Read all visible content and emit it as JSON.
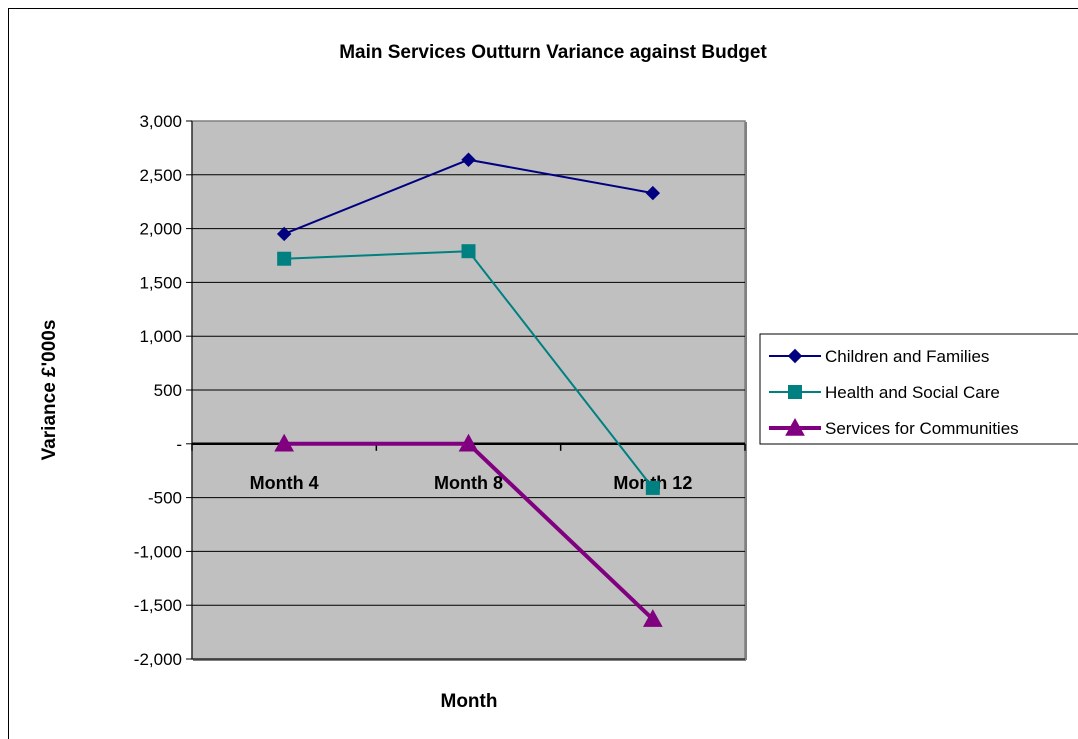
{
  "chart_data": {
    "type": "line",
    "title": "Main Services Outturn Variance against Budget",
    "xlabel": "Month",
    "ylabel": "Variance £'000s",
    "categories": [
      "Month 4",
      "Month 8",
      "Month 12"
    ],
    "ylim": [
      -2000,
      3000
    ],
    "yticks": [
      3000,
      2500,
      2000,
      1500,
      1000,
      500,
      0,
      -500,
      -1000,
      -1500,
      -2000
    ],
    "ytick_labels": [
      "3,000",
      "2,500",
      "2,000",
      "1,500",
      "1,000",
      "500",
      "-",
      "-500",
      "-1,000",
      "-1,500",
      "-2,000"
    ],
    "grid": true,
    "plot_background": "#c0c0c0",
    "legend_position": "right",
    "series": [
      {
        "name": "Children and Families",
        "values": [
          1950,
          2640,
          2330
        ],
        "color": "#000080",
        "marker": "diamond"
      },
      {
        "name": "Health and Social Care",
        "values": [
          1720,
          1790,
          -410
        ],
        "color": "#008080",
        "marker": "square"
      },
      {
        "name": "Services for Communities",
        "values": [
          0,
          0,
          -1630
        ],
        "color": "#800080",
        "marker": "triangle"
      }
    ]
  }
}
